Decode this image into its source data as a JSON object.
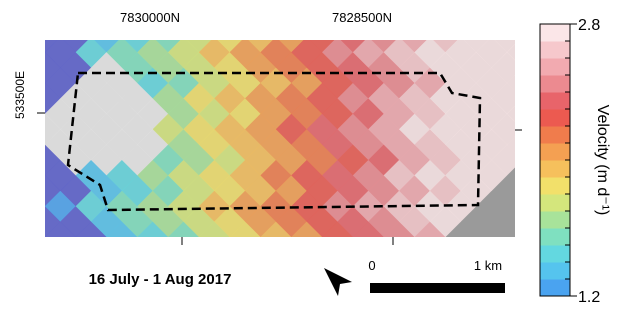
{
  "map": {
    "top_labels": [
      "7830000N",
      "7828500N"
    ],
    "left_label": "533500E",
    "date": "16 July - 1 Aug 2017",
    "scale_bar": {
      "start": "0",
      "end": "1 km"
    },
    "colorbar": {
      "title": "Velocity (m d⁻¹)",
      "lim": [
        1.2,
        2.8
      ],
      "ticks": [
        1.2,
        2.8
      ],
      "colors": [
        "#4aa3f0",
        "#55c4ee",
        "#63d8e0",
        "#7fe0c0",
        "#a8e39a",
        "#d4e67c",
        "#f2e06a",
        "#f6c05c",
        "#f4a052",
        "#f07c4c",
        "#ec5a50",
        "#e8646a",
        "#ec8a90",
        "#f2aab0",
        "#f6c8cc",
        "#fbe6e8"
      ]
    }
  }
}
